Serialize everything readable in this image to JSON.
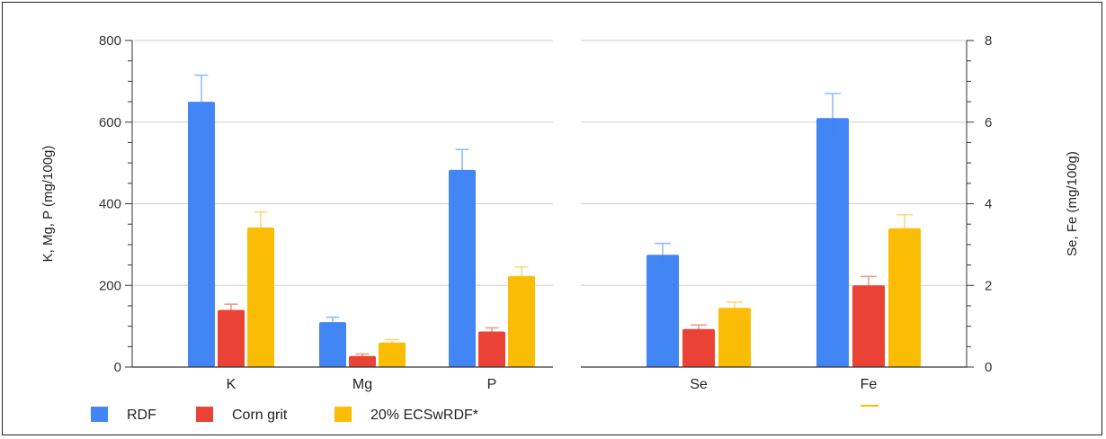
{
  "chart_data": {
    "type": "bar",
    "colors": {
      "RDF": "#4285f4",
      "Corn grit": "#ea4335",
      "20% ECSwRDF*": "#fbbc04"
    },
    "legend_position": "bottom-left",
    "grid": true,
    "panels": [
      {
        "categories": [
          "K",
          "Mg",
          "P"
        ],
        "ylabel": "K, Mg, P (mg/100g)",
        "ylim": [
          0,
          800
        ],
        "yticks": [
          0,
          200,
          400,
          600,
          800
        ],
        "y_axis_side": "left",
        "series": [
          {
            "name": "RDF",
            "values": [
              650,
              110,
              483
            ],
            "errors": [
              65,
              12,
              50
            ]
          },
          {
            "name": "Corn grit",
            "values": [
              140,
              27,
              87
            ],
            "errors": [
              14,
              5,
              9
            ]
          },
          {
            "name": "20% ECSwRDF*",
            "values": [
              342,
              60,
              223
            ],
            "errors": [
              38,
              7,
              22
            ]
          }
        ]
      },
      {
        "categories": [
          "Se",
          "Fe"
        ],
        "ylabel": "Se, Fe (mg/100g)",
        "ylim": [
          0,
          8
        ],
        "yticks": [
          0,
          2,
          4,
          6,
          8
        ],
        "y_axis_side": "right",
        "series": [
          {
            "name": "RDF",
            "values": [
              2.75,
              6.1
            ],
            "errors": [
              0.28,
              0.6
            ]
          },
          {
            "name": "Corn grit",
            "values": [
              0.93,
              2.0
            ],
            "errors": [
              0.1,
              0.22
            ]
          },
          {
            "name": "20% ECSwRDF*",
            "values": [
              1.45,
              3.4
            ],
            "errors": [
              0.14,
              0.33
            ]
          }
        ]
      }
    ],
    "legend": [
      "RDF",
      "Corn grit",
      "20% ECSwRDF*"
    ]
  }
}
